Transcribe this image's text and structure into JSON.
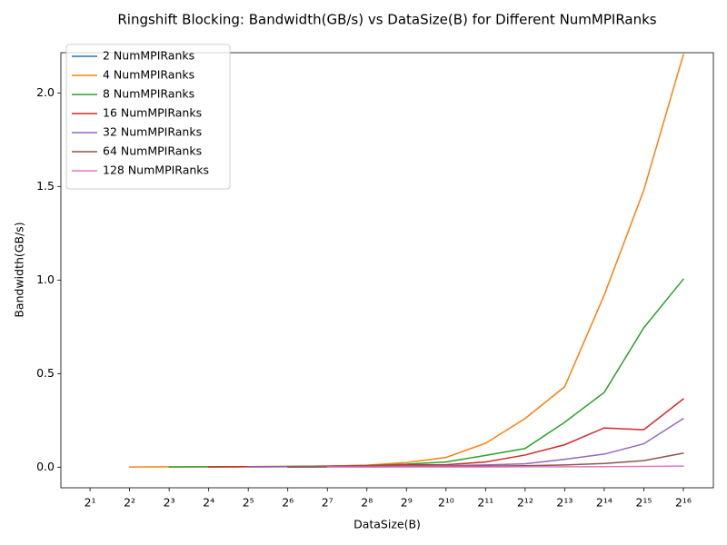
{
  "chart_data": {
    "type": "line",
    "title": "Ringshift Blocking: Bandwidth(GB/s) vs DataSize(B) for Different NumMPIRanks",
    "x_label": "DataSize(B)",
    "y_label": "Bandwidth(GB/s)",
    "x": [
      2,
      4,
      8,
      16,
      32,
      64,
      128,
      256,
      512,
      1024,
      2048,
      4096,
      8192,
      16384,
      32768,
      65536
    ],
    "x_scale": "log2",
    "xlim": [
      1.2,
      110900
    ],
    "xticks": [
      {
        "value": 2,
        "label": "2¹"
      },
      {
        "value": 4,
        "label": "2²"
      },
      {
        "value": 8,
        "label": "2³"
      },
      {
        "value": 16,
        "label": "2⁴"
      },
      {
        "value": 32,
        "label": "2⁵"
      },
      {
        "value": 64,
        "label": "2⁶"
      },
      {
        "value": 128,
        "label": "2⁷"
      },
      {
        "value": 256,
        "label": "2⁸"
      },
      {
        "value": 512,
        "label": "2⁹"
      },
      {
        "value": 1024,
        "label": "2¹⁰"
      },
      {
        "value": 2048,
        "label": "2¹¹"
      },
      {
        "value": 4096,
        "label": "2¹²"
      },
      {
        "value": 8192,
        "label": "2¹³"
      },
      {
        "value": 16384,
        "label": "2¹⁴"
      },
      {
        "value": 32768,
        "label": "2¹⁵"
      },
      {
        "value": 65536,
        "label": "2¹⁶"
      }
    ],
    "ylim": [
      -0.11,
      2.215
    ],
    "yticks": [
      {
        "value": 0,
        "label": "0.0"
      },
      0.5,
      {
        "value": 1,
        "label": "1.0"
      },
      1.5,
      {
        "value": 2,
        "label": "2.0"
      }
    ],
    "legend": "upper left",
    "series": [
      {
        "name": "2 NumMPIRanks",
        "color": "#1f77b4",
        "values": [
          0.0,
          null,
          null,
          null,
          null,
          null,
          null,
          null,
          null,
          null,
          null,
          null,
          null,
          null,
          null,
          null
        ]
      },
      {
        "name": "4 NumMPIRanks",
        "color": "#ff7f0e",
        "values": [
          null,
          0.001,
          0.002,
          0.002,
          0.003,
          0.004,
          0.006,
          0.011,
          0.025,
          0.052,
          0.128,
          0.26,
          0.43,
          0.92,
          1.48,
          2.205
        ]
      },
      {
        "name": "8 NumMPIRanks",
        "color": "#2ca02c",
        "values": [
          null,
          null,
          0.001,
          0.002,
          0.003,
          0.004,
          0.006,
          0.009,
          0.016,
          0.028,
          0.063,
          0.1,
          0.24,
          0.4,
          0.745,
          1.005
        ]
      },
      {
        "name": "16 NumMPIRanks",
        "color": "#d62728",
        "values": [
          null,
          null,
          null,
          0.001,
          0.002,
          0.003,
          0.005,
          0.008,
          0.012,
          0.013,
          0.028,
          0.065,
          0.12,
          0.21,
          0.2,
          0.365
        ]
      },
      {
        "name": "32 NumMPIRanks",
        "color": "#9467bd",
        "values": [
          null,
          null,
          null,
          null,
          0.001,
          0.002,
          0.003,
          0.004,
          0.006,
          0.008,
          0.012,
          0.018,
          0.042,
          0.07,
          0.125,
          0.26
        ]
      },
      {
        "name": "64 NumMPIRanks",
        "color": "#8c564b",
        "values": [
          null,
          null,
          null,
          null,
          null,
          0.0005,
          0.001,
          0.002,
          0.003,
          0.004,
          0.006,
          0.008,
          0.012,
          0.02,
          0.035,
          0.075
        ]
      },
      {
        "name": "128 NumMPIRanks",
        "color": "#e377c2",
        "values": [
          null,
          null,
          null,
          null,
          null,
          null,
          0.0003,
          0.0005,
          0.001,
          0.001,
          0.001,
          0.002,
          0.002,
          0.003,
          0.004,
          0.006
        ]
      }
    ]
  }
}
